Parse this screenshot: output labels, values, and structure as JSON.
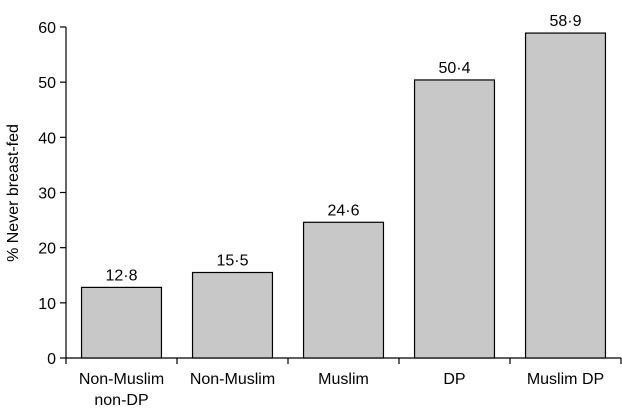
{
  "chart_data": {
    "type": "bar",
    "categories": [
      [
        "Non-Muslim",
        "non-DP"
      ],
      [
        "Non-Muslim"
      ],
      [
        "Muslim"
      ],
      [
        "DP"
      ],
      [
        "Muslim DP"
      ]
    ],
    "values": [
      12.8,
      15.5,
      24.6,
      50.4,
      58.9
    ],
    "data_labels": [
      "12·8",
      "15·5",
      "24·6",
      "50·4",
      "58·9"
    ],
    "title": "",
    "xlabel": "",
    "ylabel": "% Never breast-fed",
    "ylim": [
      0,
      60
    ],
    "yticks": [
      0,
      10,
      20,
      30,
      40,
      50,
      60
    ],
    "bar_color": "#c8c8c8",
    "grid": false,
    "legend": "none"
  }
}
